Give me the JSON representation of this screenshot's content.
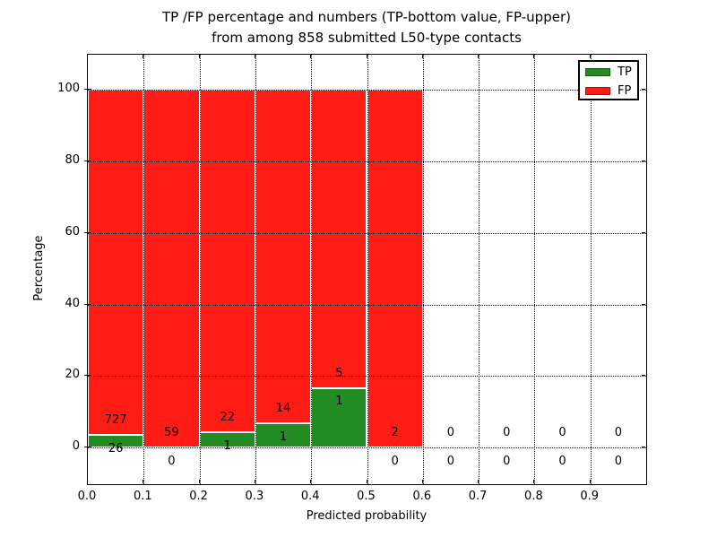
{
  "title": {
    "line1": "TP /FP percentage and numbers (TP-bottom value, FP-upper)",
    "line2": "from among 858 submitted L50-type contacts"
  },
  "legend": {
    "items": [
      {
        "label": "TP",
        "color": "#228b22"
      },
      {
        "label": "FP",
        "color": "#ff1c14"
      }
    ]
  },
  "chart_data": {
    "type": "bar",
    "stacked": true,
    "normalized_to_percent_per_bin": true,
    "title": "TP /FP percentage and numbers (TP-bottom value, FP-upper) from among 858 submitted L50-type contacts",
    "xlabel": "Predicted probability",
    "ylabel": "Percentage",
    "total_contacts": 858,
    "bin_width": 0.1,
    "x_bin_starts": [
      0.0,
      0.1,
      0.2,
      0.3,
      0.4,
      0.5,
      0.6,
      0.7,
      0.8,
      0.9
    ],
    "series": [
      {
        "name": "TP",
        "color": "#228b22",
        "values": [
          26,
          0,
          1,
          1,
          1,
          0,
          0,
          0,
          0,
          0
        ]
      },
      {
        "name": "FP",
        "color": "#ff1c14",
        "values": [
          727,
          59,
          22,
          14,
          5,
          2,
          0,
          0,
          0,
          0
        ]
      }
    ],
    "xlim": [
      0.0,
      1.0
    ],
    "ylim": [
      -10.3,
      109.9
    ],
    "ytick_values": [
      0,
      20,
      40,
      60,
      80,
      100
    ],
    "ytick_labels": [
      "0",
      "20",
      "40",
      "60",
      "80",
      "100"
    ],
    "xtick_values": [
      0.0,
      0.1,
      0.2,
      0.3,
      0.4,
      0.5,
      0.6,
      0.7,
      0.8,
      0.9
    ],
    "xtick_labels": [
      "0.0",
      "0.1",
      "0.2",
      "0.3",
      "0.4",
      "0.5",
      "0.6",
      "0.7",
      "0.8",
      "0.9"
    ],
    "grid": "dotted-black-both-axes-on-top",
    "legend_position": "upper right",
    "label_offset_percent": 4
  }
}
